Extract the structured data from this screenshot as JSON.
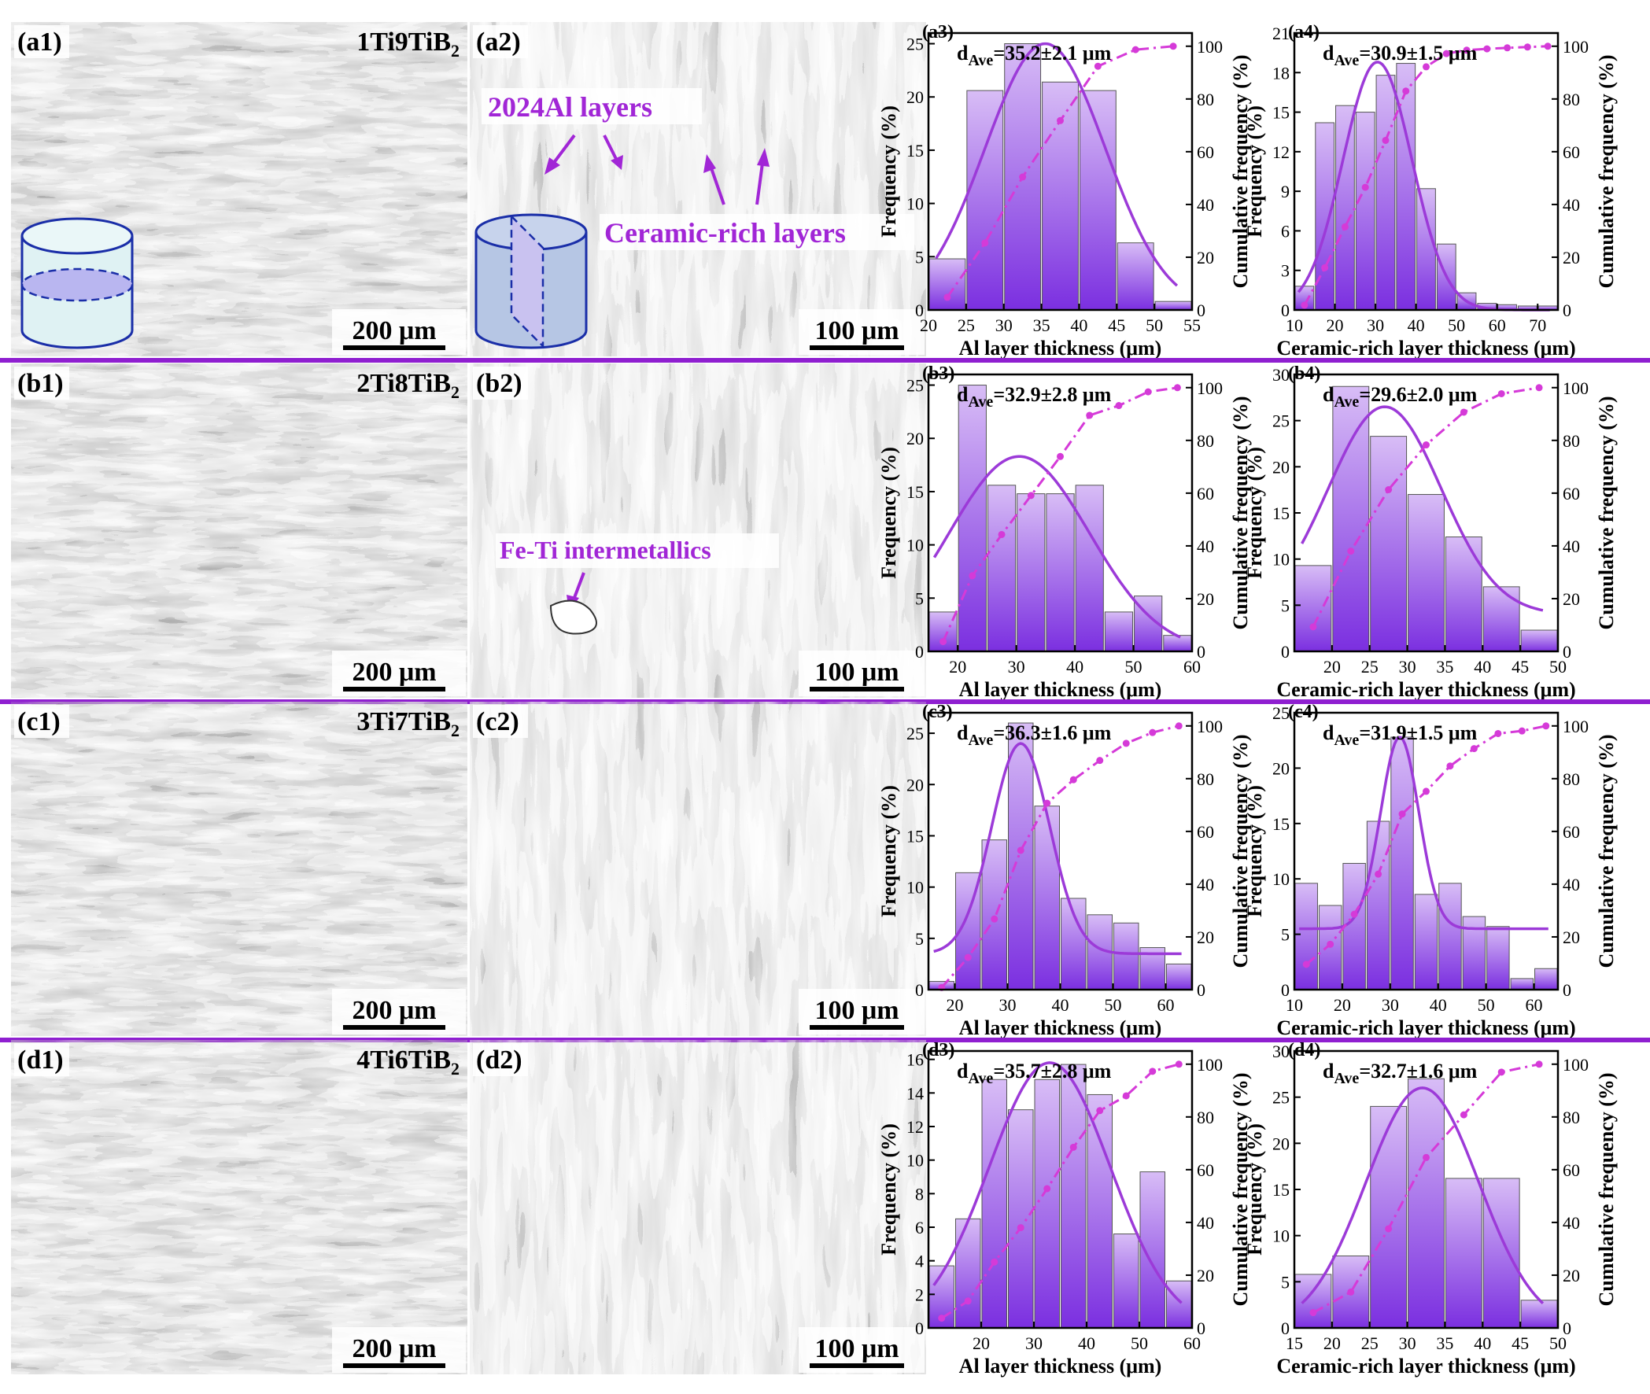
{
  "rows": [
    {
      "id": "a",
      "sample": "1Ti9TiB",
      "sample_sub": "2",
      "micro_labels": [
        "(a1)",
        "(a2)"
      ],
      "scale_bars": [
        "200 μm",
        "100 μm"
      ],
      "annotations": [
        "2024Al layers",
        "Ceramic-rich layers"
      ],
      "charts": [
        {
          "label": "(a3)",
          "type": "bar",
          "avg_prefix": "d",
          "avg_sub": "Ave",
          "avg_value": "=35.2±2.1 μm",
          "xlabel": "Al layer thickness (μm)",
          "ylabel": "Frequency (%)",
          "y2label": "Cumulative frequency (%)",
          "xlim": [
            20,
            55
          ],
          "xticks": [
            20,
            25,
            30,
            35,
            40,
            45,
            50,
            55
          ],
          "ylim": [
            0,
            26
          ],
          "yticks": [
            0,
            5,
            10,
            15,
            20,
            25
          ],
          "y2ticks": [
            0,
            20,
            40,
            60,
            80,
            100
          ],
          "bin_width": 5,
          "x": [
            22.5,
            27.5,
            32.5,
            37.5,
            42.5,
            47.5,
            52.5
          ],
          "values": [
            4.8,
            20.6,
            25.0,
            21.4,
            20.6,
            6.3,
            0.8
          ],
          "cumulative": [
            4.8,
            25.4,
            50.4,
            71.8,
            92.4,
            98.7,
            100
          ],
          "fit": {
            "mean": 35.5,
            "sigma": 8.0,
            "peak": 25.0
          }
        },
        {
          "label": "(a4)",
          "type": "bar",
          "avg_prefix": "d",
          "avg_sub": "Ave",
          "avg_value": "=30.9±1.5 μm",
          "xlabel": "Ceramic-rich layer thickness (μm)",
          "ylabel": "Frequency (%)",
          "y2label": "Cumulative frequency (%)",
          "xlim": [
            10,
            75
          ],
          "xticks": [
            10,
            20,
            30,
            40,
            50,
            60,
            70
          ],
          "ylim": [
            0,
            21
          ],
          "yticks": [
            0,
            3,
            6,
            9,
            12,
            15,
            18,
            21
          ],
          "y2ticks": [
            0,
            20,
            40,
            60,
            80,
            100
          ],
          "bin_width": 5,
          "x": [
            12.5,
            17.5,
            22.5,
            27.5,
            32.5,
            37.5,
            42.5,
            47.5,
            52.5,
            57.5,
            62.5,
            67.5,
            72.5
          ],
          "values": [
            1.8,
            14.2,
            15.5,
            15.0,
            17.8,
            18.7,
            9.2,
            5.0,
            1.3,
            0.5,
            0.4,
            0.3,
            0.3
          ],
          "cumulative": [
            1.8,
            16.0,
            31.5,
            46.5,
            64.3,
            83.0,
            92.2,
            97.2,
            98.5,
            99.0,
            99.4,
            99.7,
            100
          ],
          "fit": {
            "mean": 30.5,
            "sigma": 8.5,
            "peak": 18.8
          }
        }
      ]
    },
    {
      "id": "b",
      "sample": "2Ti8TiB",
      "sample_sub": "2",
      "micro_labels": [
        "(b1)",
        "(b2)"
      ],
      "scale_bars": [
        "200 μm",
        "100 μm"
      ],
      "annotations": [
        "Fe-Ti intermetallics"
      ],
      "charts": [
        {
          "label": "(b3)",
          "type": "bar",
          "avg_prefix": "d",
          "avg_sub": "Ave",
          "avg_value": "=32.9±2.8 μm",
          "xlabel": "Al layer thickness (μm)",
          "ylabel": "Frequency (%)",
          "y2label": "Cumulative frequency (%)",
          "xlim": [
            15,
            60
          ],
          "xticks": [
            20,
            30,
            40,
            50,
            60
          ],
          "ylim": [
            0,
            26
          ],
          "yticks": [
            0,
            5,
            10,
            15,
            20,
            25
          ],
          "y2ticks": [
            0,
            20,
            40,
            60,
            80,
            100
          ],
          "bin_width": 5,
          "x": [
            17.5,
            22.5,
            27.5,
            32.5,
            37.5,
            42.5,
            47.5,
            52.5,
            57.5
          ],
          "values": [
            3.7,
            25.0,
            15.6,
            14.8,
            14.8,
            15.6,
            3.7,
            5.2,
            1.5
          ],
          "cumulative": [
            3.7,
            28.7,
            44.3,
            59.1,
            73.9,
            89.5,
            93.2,
            98.4,
            100
          ],
          "fit": {
            "mean": 30.5,
            "sigma": 12.0,
            "peak": 18.3
          }
        },
        {
          "label": "(b4)",
          "type": "bar",
          "avg_prefix": "d",
          "avg_sub": "Ave",
          "avg_value": "=29.6±2.0 μm",
          "xlabel": "Ceramic-rich layer thickness (μm)",
          "ylabel": "Frequency (%)",
          "y2label": "Cumulative frequency (%)",
          "xlim": [
            15,
            50
          ],
          "xticks": [
            20,
            25,
            30,
            35,
            40,
            45,
            50
          ],
          "ylim": [
            0,
            30
          ],
          "yticks": [
            0,
            5,
            10,
            15,
            20,
            25,
            30
          ],
          "y2ticks": [
            0,
            20,
            40,
            60,
            80,
            100
          ],
          "bin_width": 5,
          "x": [
            17.5,
            22.5,
            27.5,
            32.5,
            37.5,
            42.5,
            47.5
          ],
          "values": [
            9.3,
            28.7,
            23.3,
            17.0,
            12.4,
            7.0,
            2.3
          ],
          "cumulative": [
            9.3,
            38.0,
            61.3,
            78.3,
            90.7,
            97.7,
            100
          ],
          "fit": {
            "mean": 27.0,
            "sigma": 7.5,
            "peak": 26.5,
            "base": 4.0
          }
        }
      ]
    },
    {
      "id": "c",
      "sample": "3Ti7TiB",
      "sample_sub": "2",
      "micro_labels": [
        "(c1)",
        "(c2)"
      ],
      "scale_bars": [
        "200 μm",
        "100 μm"
      ],
      "annotations": [],
      "charts": [
        {
          "label": "(c3)",
          "type": "bar",
          "avg_prefix": "d",
          "avg_sub": "Ave",
          "avg_value": "=36.3±1.6 μm",
          "xlabel": "Al layer thickness (μm)",
          "ylabel": "Frequency (%)",
          "y2label": "Cumulative frequency (%)",
          "xlim": [
            15,
            65
          ],
          "xticks": [
            20,
            30,
            40,
            50,
            60
          ],
          "ylim": [
            0,
            27
          ],
          "yticks": [
            0,
            5,
            10,
            15,
            20,
            25
          ],
          "y2ticks": [
            0,
            20,
            40,
            60,
            80,
            100
          ],
          "bin_width": 5,
          "x": [
            17.5,
            22.5,
            27.5,
            32.5,
            37.5,
            42.5,
            47.5,
            52.5,
            57.5,
            62.5
          ],
          "values": [
            0.8,
            11.4,
            14.6,
            26.0,
            17.9,
            8.9,
            7.3,
            6.5,
            4.1,
            2.5
          ],
          "cumulative": [
            0.8,
            12.2,
            26.8,
            52.8,
            70.7,
            79.6,
            86.9,
            93.4,
            97.5,
            100
          ],
          "fit": {
            "mean": 32.5,
            "sigma": 5.5,
            "peak": 24.0,
            "base": 3.5
          }
        },
        {
          "label": "(c4)",
          "type": "bar",
          "avg_prefix": "d",
          "avg_sub": "Ave",
          "avg_value": "=31.9±1.5 μm",
          "xlabel": "Ceramic-rich layer thickness (μm)",
          "ylabel": "Frequency (%)",
          "y2label": "Cumulative frequency (%)",
          "xlim": [
            10,
            65
          ],
          "xticks": [
            10,
            20,
            30,
            40,
            50,
            60
          ],
          "ylim": [
            0,
            25
          ],
          "yticks": [
            0,
            5,
            10,
            15,
            20,
            25
          ],
          "y2ticks": [
            0,
            20,
            40,
            60,
            80,
            100
          ],
          "bin_width": 5,
          "x": [
            12.5,
            17.5,
            22.5,
            27.5,
            32.5,
            37.5,
            42.5,
            47.5,
            52.5,
            57.5,
            62.5
          ],
          "values": [
            9.6,
            7.6,
            11.4,
            15.2,
            22.8,
            8.6,
            9.6,
            6.6,
            5.7,
            1.0,
            1.9
          ],
          "cumulative": [
            9.6,
            17.2,
            28.6,
            43.8,
            66.6,
            75.2,
            84.8,
            91.4,
            97.1,
            98.1,
            100
          ],
          "fit": {
            "mean": 32.0,
            "sigma": 4.0,
            "peak": 22.8,
            "base": 5.5
          }
        }
      ]
    },
    {
      "id": "d",
      "sample": "4Ti6TiB",
      "sample_sub": "2",
      "micro_labels": [
        "(d1)",
        "(d2)"
      ],
      "scale_bars": [
        "200 μm",
        "100 μm"
      ],
      "annotations": [],
      "charts": [
        {
          "label": "(d3)",
          "type": "bar",
          "avg_prefix": "d",
          "avg_sub": "Ave",
          "avg_value": "=35.7±2.8 μm",
          "xlabel": "Al layer thickness (μm)",
          "ylabel": "Frequency (%)",
          "y2label": "Cumulative frequency (%)",
          "xlim": [
            10,
            60
          ],
          "xticks": [
            20,
            30,
            40,
            50,
            60
          ],
          "ylim": [
            0,
            16.5
          ],
          "yticks": [
            0,
            2,
            4,
            6,
            8,
            10,
            12,
            14,
            16
          ],
          "y2ticks": [
            0,
            20,
            40,
            60,
            80,
            100
          ],
          "bin_width": 5,
          "x": [
            12.5,
            17.5,
            22.5,
            27.5,
            32.5,
            37.5,
            42.5,
            47.5,
            52.5,
            57.5
          ],
          "values": [
            3.7,
            6.5,
            14.8,
            13.0,
            14.8,
            15.7,
            13.9,
            5.6,
            9.3,
            2.8
          ],
          "cumulative": [
            3.7,
            10.2,
            25.0,
            38.0,
            52.8,
            68.5,
            82.4,
            88.0,
            97.3,
            100
          ],
          "fit": {
            "mean": 33.0,
            "sigma": 11.5,
            "peak": 15.8
          }
        },
        {
          "label": "(d4)",
          "type": "bar",
          "avg_prefix": "d",
          "avg_sub": "Ave",
          "avg_value": "=32.7±1.6 μm",
          "xlabel": "Ceramic-rich layer thickness (μm)",
          "ylabel": "Frequency (%)",
          "y2label": "Cumulative frequency (%)",
          "xlim": [
            15,
            50
          ],
          "xticks": [
            15,
            20,
            25,
            30,
            35,
            40,
            45,
            50
          ],
          "ylim": [
            0,
            30
          ],
          "yticks": [
            0,
            5,
            10,
            15,
            20,
            25,
            30
          ],
          "y2ticks": [
            0,
            20,
            40,
            60,
            80,
            100
          ],
          "bin_width": 5,
          "x": [
            17.5,
            22.5,
            27.5,
            32.5,
            37.5,
            42.5,
            47.5
          ],
          "values": [
            5.8,
            7.8,
            24.0,
            27.0,
            16.2,
            16.2,
            3.0
          ],
          "cumulative": [
            5.8,
            13.6,
            37.6,
            64.6,
            80.8,
            97.0,
            100
          ],
          "fit": {
            "mean": 32.0,
            "sigma": 7.5,
            "peak": 26.0
          }
        }
      ]
    }
  ],
  "colors": {
    "accent": "#a126d6",
    "bar_top": "#c9a6f2",
    "bar_bottom": "#7b2fe0",
    "fit_line": "#9c3ad8",
    "cum_line": "#d53ad8",
    "divider": "#8f1fd0"
  }
}
